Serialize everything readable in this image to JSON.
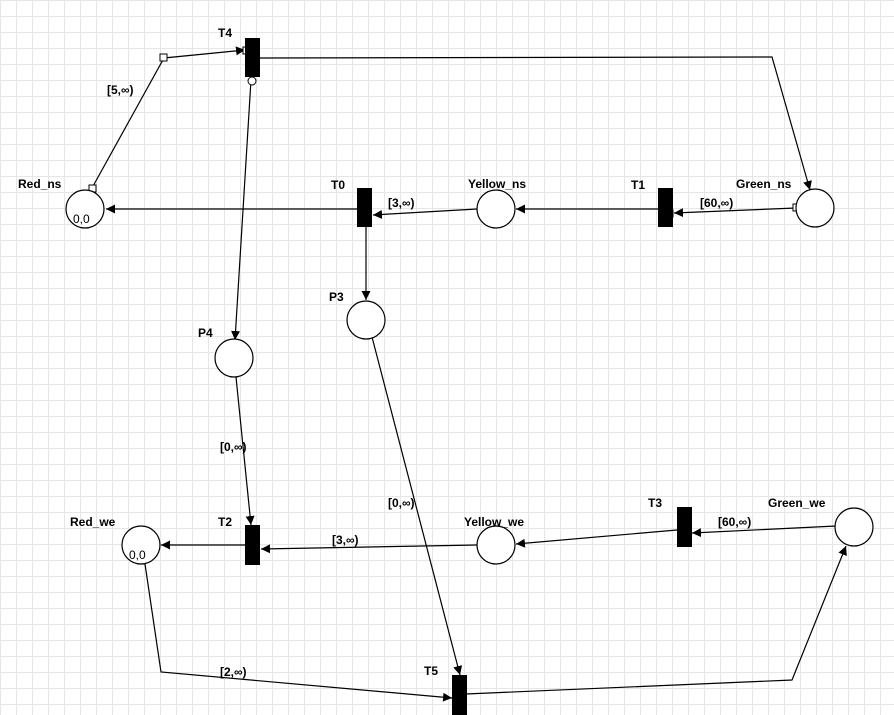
{
  "places": {
    "red_ns": {
      "label": "Red_ns",
      "tokens": "0,0"
    },
    "yellow_ns": {
      "label": "Yellow_ns",
      "tokens": ""
    },
    "green_ns": {
      "label": "Green_ns",
      "tokens": ""
    },
    "p3": {
      "label": "P3",
      "tokens": ""
    },
    "p4": {
      "label": "P4",
      "tokens": ""
    },
    "red_we": {
      "label": "Red_we",
      "tokens": "0,0"
    },
    "yellow_we": {
      "label": "Yellow_we",
      "tokens": ""
    },
    "green_we": {
      "label": "Green_we",
      "tokens": ""
    }
  },
  "transitions": {
    "t0": {
      "label": "T0"
    },
    "t1": {
      "label": "T1"
    },
    "t2": {
      "label": "T2"
    },
    "t3": {
      "label": "T3"
    },
    "t4": {
      "label": "T4"
    },
    "t5": {
      "label": "T5"
    }
  },
  "arc_labels": {
    "red_ns_t4": "[5,∞)",
    "yellow_ns_t0": "[3,∞)",
    "green_ns_t1": "[60,∞)",
    "p4_t2": "[0,∞)",
    "yellow_we_t2": "[3,∞)",
    "green_we_t3": "[60,∞)",
    "p3_t5": "[0,∞)",
    "red_we_t5": "[2,∞)"
  }
}
